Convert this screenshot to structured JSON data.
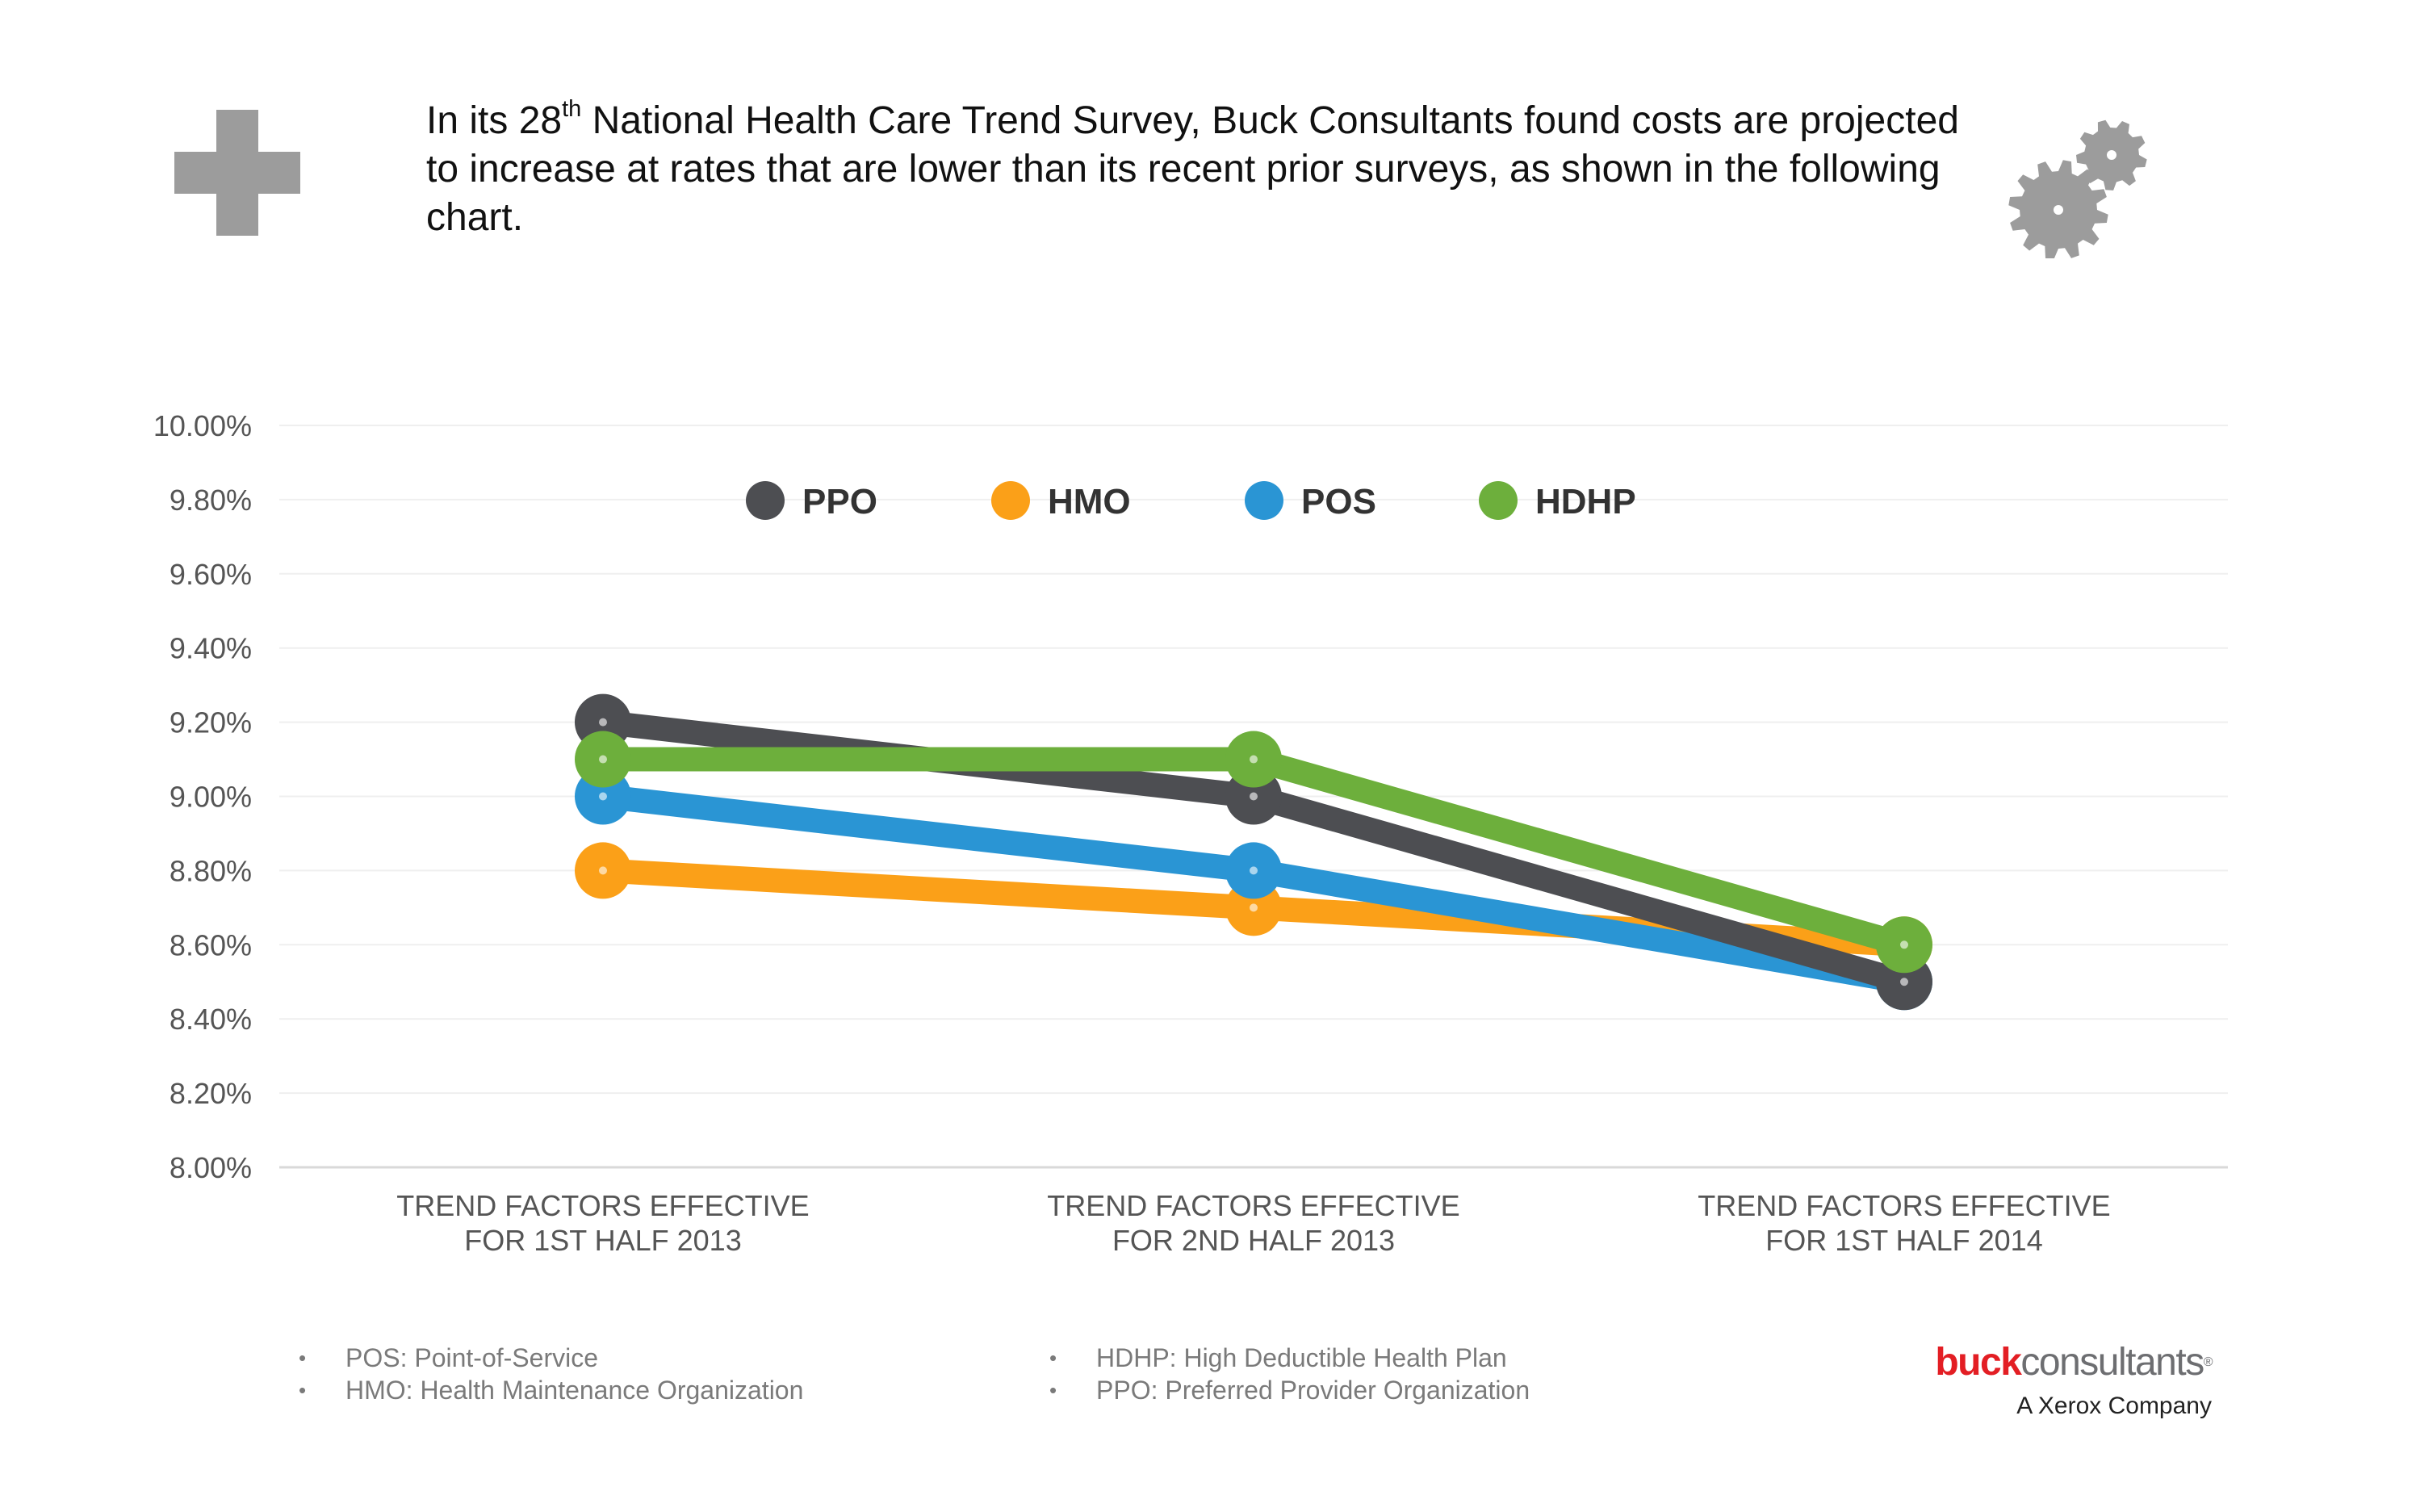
{
  "intro": {
    "prefix": "In its 28",
    "superscript": "th",
    "rest": " National Health Care Trend Survey, Buck Consultants found costs are projected to increase at rates that are lower than its recent prior surveys, as shown in the following chart."
  },
  "icons": {
    "left": "medical-cross-icon",
    "right": "gears-icon"
  },
  "chart_data": {
    "type": "line",
    "title": "",
    "xlabel": "",
    "ylabel": "",
    "categories": [
      [
        "TREND FACTORS EFFECTIVE",
        "FOR 1ST HALF 2013"
      ],
      [
        "TREND FACTORS EFFECTIVE",
        "FOR 2ND HALF 2013"
      ],
      [
        "TREND FACTORS EFFECTIVE",
        "FOR 1ST HALF 2014"
      ]
    ],
    "ylim": [
      8.0,
      10.0
    ],
    "yticks": [
      8.0,
      8.2,
      8.4,
      8.6,
      8.8,
      9.0,
      9.2,
      9.4,
      9.6,
      9.8,
      10.0
    ],
    "ytick_labels": [
      "8.00%",
      "8.20%",
      "8.40%",
      "8.60%",
      "8.80%",
      "9.00%",
      "9.20%",
      "9.40%",
      "9.60%",
      "9.80%",
      "10.00%"
    ],
    "grid": true,
    "legend_position": "top-center",
    "series": [
      {
        "name": "PPO",
        "color": "#4d4e52",
        "values": [
          9.2,
          9.0,
          8.5
        ]
      },
      {
        "name": "HMO",
        "color": "#fba018",
        "values": [
          8.8,
          8.7,
          8.6
        ]
      },
      {
        "name": "POS",
        "color": "#2a95d4",
        "values": [
          9.0,
          8.8,
          8.5
        ]
      },
      {
        "name": "HDHP",
        "color": "#6daf3c",
        "values": [
          9.1,
          9.1,
          8.6
        ]
      }
    ],
    "draw_order": [
      "HMO",
      "POS",
      "PPO",
      "HDHP"
    ]
  },
  "notes": {
    "left": [
      "POS: Point-of-Service",
      "HMO: Health Maintenance Organization"
    ],
    "right": [
      "HDHP: High Deductible Health Plan",
      "PPO: Preferred Provider Organization"
    ]
  },
  "logo": {
    "brand_bold": "buck",
    "brand_light": "consultants",
    "trademark": "®",
    "tagline": "A Xerox Company",
    "brand_color": "#e31e24"
  }
}
